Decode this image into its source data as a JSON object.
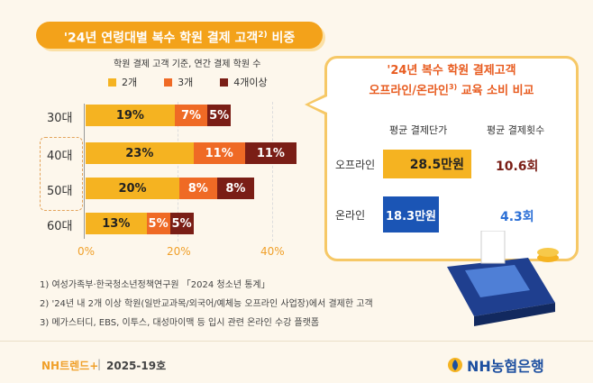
{
  "title": "'24년 연령대별 복수 학원 결제 고객",
  "title_sup": "2)",
  "title_suffix": " 비중",
  "subtitle": "학원 결제 고객 기준, 연간 결제 학원 수",
  "colors": {
    "c2": "#f5b321",
    "c3": "#ef6a25",
    "c4": "#7a1e16",
    "accent": "#f3a21a",
    "online": "#1b55b5"
  },
  "chart_data": {
    "type": "bar",
    "orientation": "horizontal-stacked",
    "categories": [
      "30대",
      "40대",
      "50대",
      "60대"
    ],
    "series": [
      {
        "name": "2개",
        "values": [
          19,
          23,
          20,
          13
        ],
        "labels": [
          "19%",
          "23%",
          "20%",
          "13%"
        ]
      },
      {
        "name": "3개",
        "values": [
          7,
          11,
          8,
          5
        ],
        "labels": [
          "7%",
          "11%",
          "8%",
          "5%"
        ]
      },
      {
        "name": "4개이상",
        "values": [
          5,
          11,
          8,
          5
        ],
        "labels": [
          "5%",
          "11%",
          "8%",
          "5%"
        ]
      }
    ],
    "xlim": [
      0,
      45
    ],
    "xticks": [
      "0%",
      "20%",
      "40%"
    ],
    "legend": "top"
  },
  "notes": [
    "1) 여성가족부·한국청소년정책연구원 「2024 청소년 통계」",
    "2) '24년 내 2개 이상 학원(일반교과목/외국어/예체능 오프라인 사업장)에서 결제한 고객",
    "3) 메가스터디, EBS, 이투스, 대성마이맥 등 입시 관련 온라인 수강 플랫폼"
  ],
  "panel": {
    "title_line1": "'24년 복수 학원 결제고객",
    "title_line2": "오프라인/온라인",
    "title_sup": "3)",
    "title_suffix": " 교육 소비 비교",
    "header_price": "평균 결제단가",
    "header_count": "평균 결제횟수",
    "rows": [
      {
        "label": "오프라인",
        "price": "28.5만원",
        "count": "10.6회"
      },
      {
        "label": "온라인",
        "price": "18.3만원",
        "count": "4.3회"
      }
    ]
  },
  "footer": {
    "brand": "NH트렌드+",
    "sep": "|",
    "issue": "2025-19호",
    "logo": "NH농협은행"
  }
}
